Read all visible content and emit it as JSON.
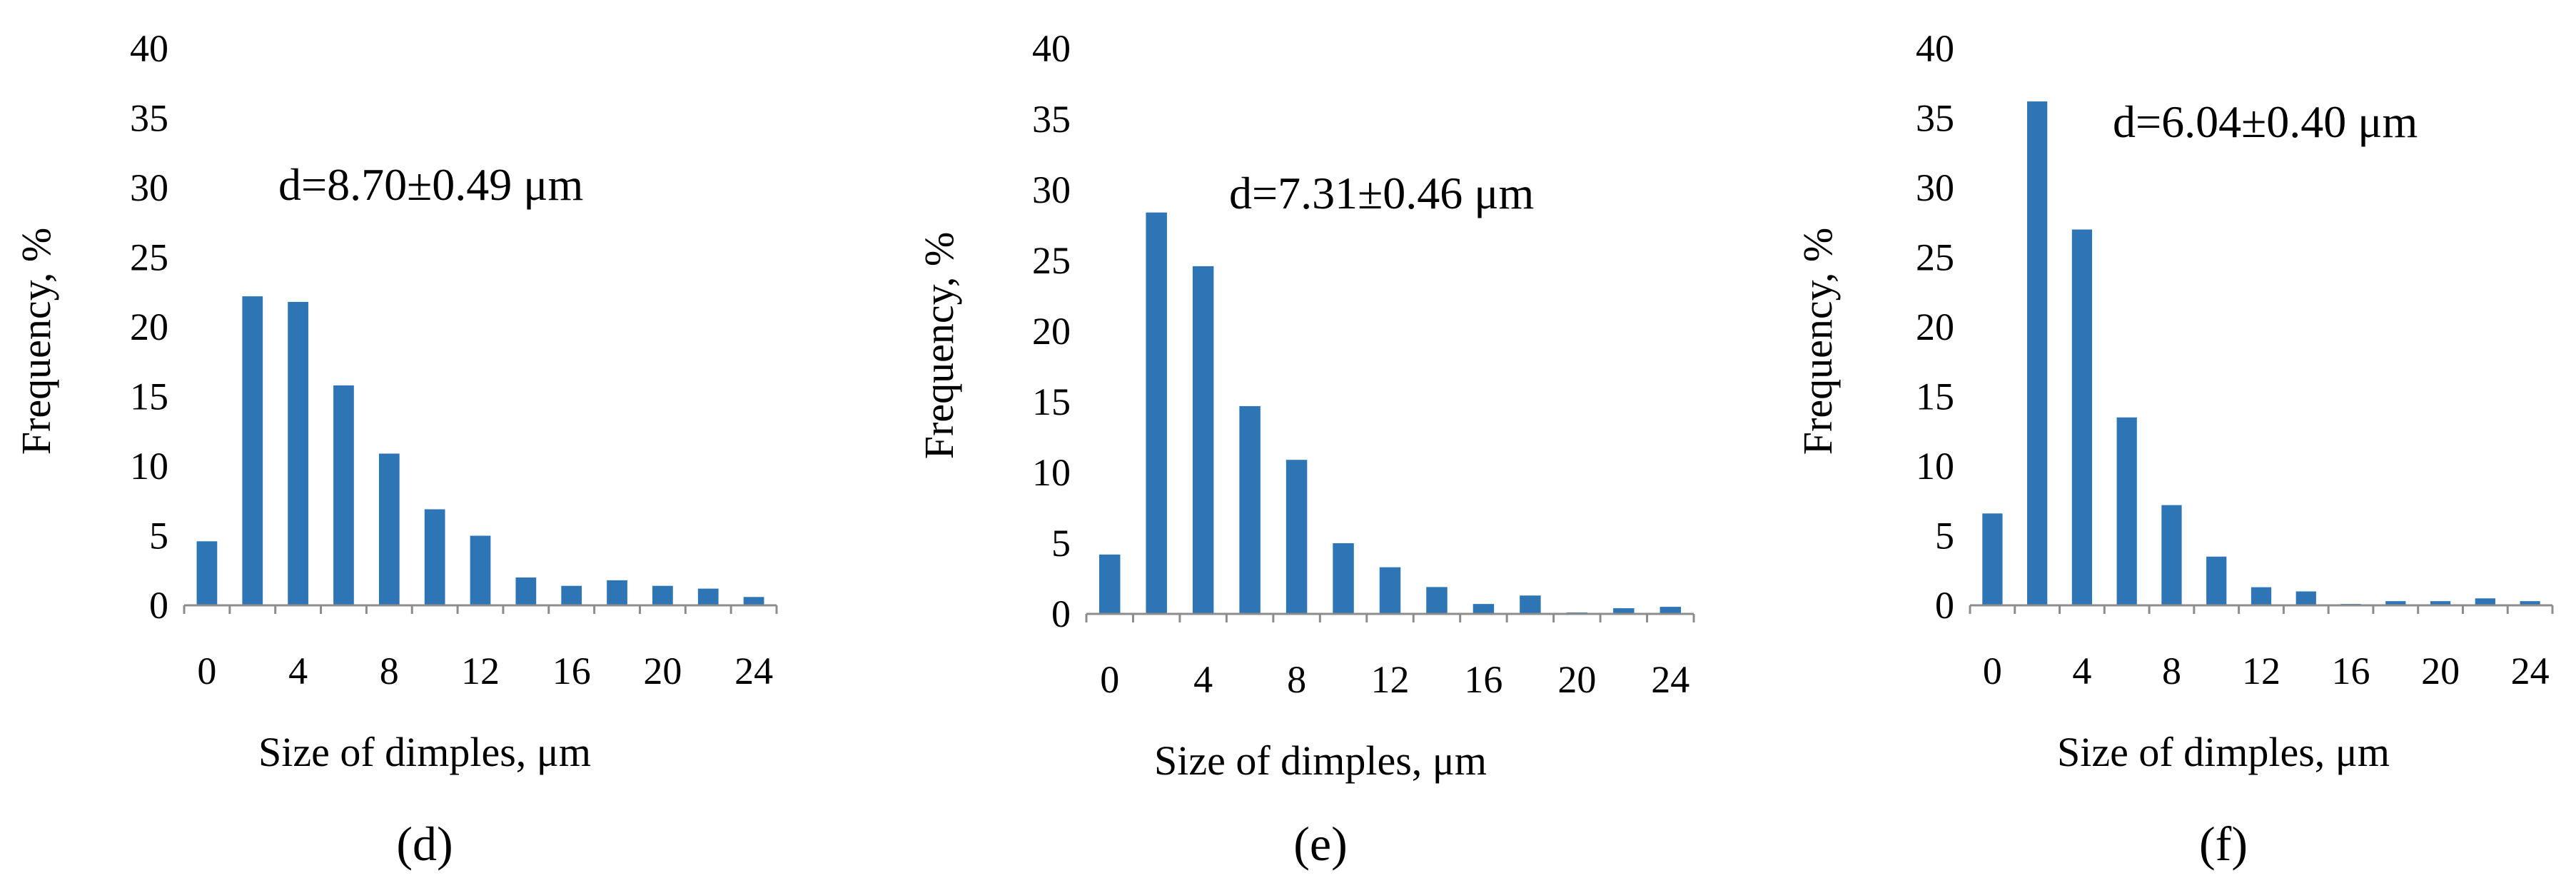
{
  "chart_data": [
    {
      "type": "bar",
      "panel_label": "(d)",
      "annotation": "d=8.70±0.49 μm",
      "xlabel": "Size of dimples, μm",
      "ylabel": "Frequency, %",
      "ylim": [
        0,
        40
      ],
      "yticks": [
        0,
        5,
        10,
        15,
        20,
        25,
        30,
        35,
        40
      ],
      "xticks": [
        0,
        4,
        8,
        12,
        16,
        20,
        24
      ],
      "x": [
        0,
        2,
        4,
        6,
        8,
        10,
        12,
        14,
        16,
        18,
        20,
        22,
        24
      ],
      "values": [
        4.6,
        22.2,
        21.8,
        15.8,
        10.9,
        6.9,
        5.0,
        2.0,
        1.4,
        1.8,
        1.4,
        1.2,
        0.6
      ],
      "bar_color": "#2e75b6",
      "grid": false
    },
    {
      "type": "bar",
      "panel_label": "(e)",
      "annotation": "d=7.31±0.46 μm",
      "xlabel": "Size of dimples, μm",
      "ylabel": "Frequency, %",
      "ylim": [
        0,
        40
      ],
      "yticks": [
        0,
        5,
        10,
        15,
        20,
        25,
        30,
        35,
        40
      ],
      "xticks": [
        0,
        4,
        8,
        12,
        16,
        20,
        24
      ],
      "x": [
        0,
        2,
        4,
        6,
        8,
        10,
        12,
        14,
        16,
        18,
        20,
        22,
        24
      ],
      "values": [
        4.2,
        28.4,
        24.6,
        14.7,
        10.9,
        5.0,
        3.3,
        1.9,
        0.7,
        1.3,
        0.1,
        0.4,
        0.5
      ],
      "bar_color": "#2e75b6",
      "grid": false
    },
    {
      "type": "bar",
      "panel_label": "(f)",
      "annotation": "d=6.04±0.40 μm",
      "xlabel": "Size of dimples, μm",
      "ylabel": "Frequency, %",
      "ylim": [
        0,
        40
      ],
      "yticks": [
        0,
        5,
        10,
        15,
        20,
        25,
        30,
        35,
        40
      ],
      "xticks": [
        0,
        4,
        8,
        12,
        16,
        20,
        24
      ],
      "x": [
        0,
        2,
        4,
        6,
        8,
        10,
        12,
        14,
        16,
        18,
        20,
        22,
        24
      ],
      "values": [
        6.6,
        36.2,
        27.0,
        13.5,
        7.2,
        3.5,
        1.3,
        1.0,
        0.1,
        0.3,
        0.3,
        0.5,
        0.3
      ],
      "bar_color": "#2e75b6",
      "grid": false
    }
  ]
}
